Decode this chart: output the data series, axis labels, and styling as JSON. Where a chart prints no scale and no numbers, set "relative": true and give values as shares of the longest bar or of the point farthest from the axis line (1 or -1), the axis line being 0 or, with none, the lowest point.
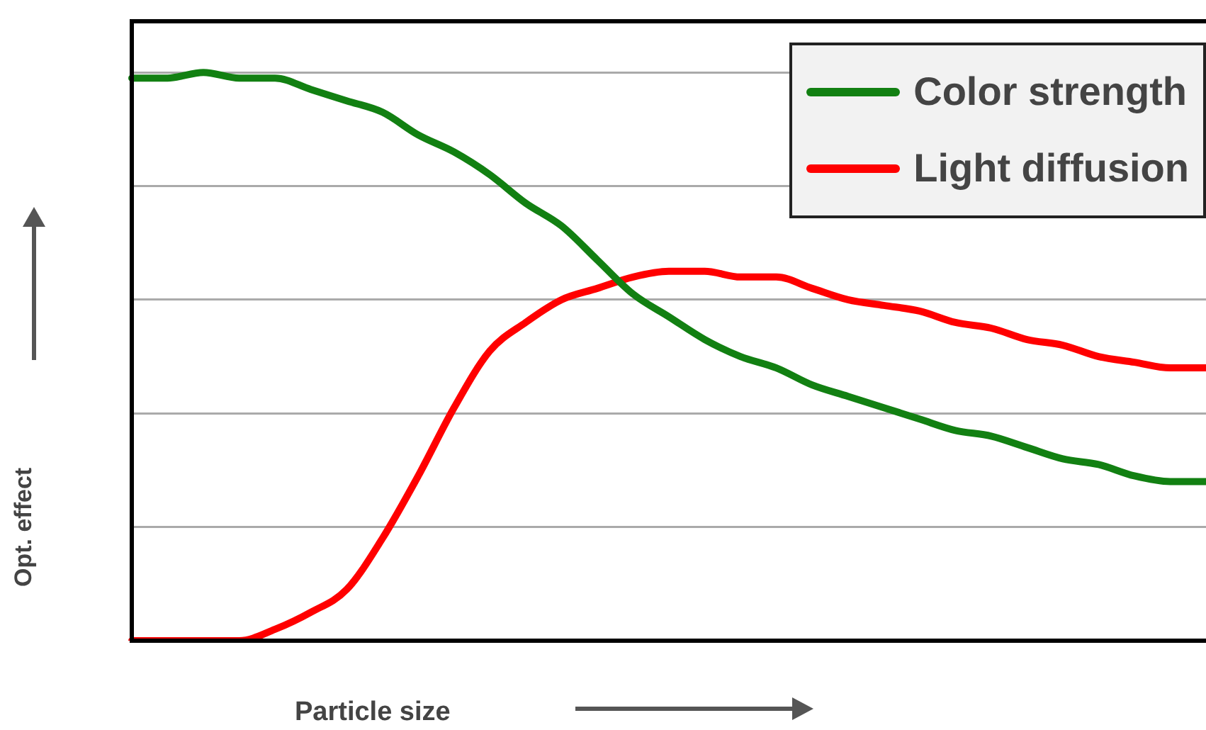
{
  "chart_data": {
    "type": "line",
    "relative": true,
    "xlabel": "Particle size",
    "ylabel": "Opt. effect",
    "grid": "y",
    "legend": "top right",
    "marker": "none",
    "line_style": "solid",
    "categories": [
      null,
      null,
      null,
      null,
      null,
      null,
      null,
      null,
      null,
      null,
      null,
      null,
      null,
      null,
      null,
      null,
      null,
      null,
      null,
      null,
      null,
      null,
      null,
      null,
      null,
      null,
      null,
      null,
      null,
      null,
      null
    ],
    "series": [
      {
        "name": "Color strength",
        "color": "#128012",
        "values": [
          0.99,
          0.99,
          1,
          0.99,
          0.99,
          0.97,
          0.95,
          0.93,
          0.89,
          0.86,
          0.82,
          0.77,
          0.73,
          0.67,
          0.61,
          0.57,
          0.53,
          0.5,
          0.48,
          0.45,
          0.43,
          0.41,
          0.39,
          0.37,
          0.36,
          0.34,
          0.32,
          0.31,
          0.29,
          0.28,
          0.28
        ]
      },
      {
        "name": "Light diffusion",
        "color": "#ff0000",
        "values": [
          0,
          0,
          0,
          0,
          0.02,
          0.05,
          0.09,
          0.18,
          0.29,
          0.41,
          0.51,
          0.56,
          0.6,
          0.62,
          0.64,
          0.65,
          0.65,
          0.64,
          0.64,
          0.62,
          0.6,
          0.59,
          0.58,
          0.56,
          0.55,
          0.53,
          0.52,
          0.5,
          0.49,
          0.48,
          0.48
        ]
      }
    ]
  }
}
